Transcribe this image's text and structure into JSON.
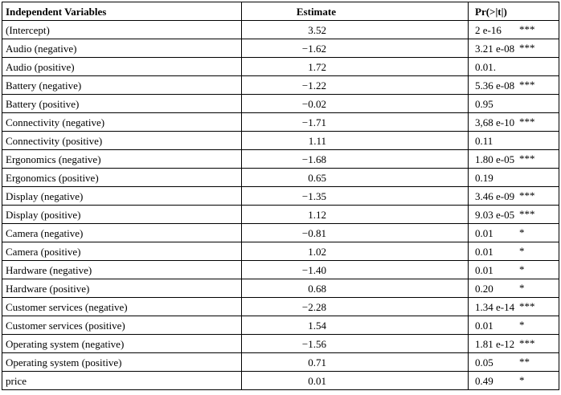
{
  "table": {
    "headers": {
      "variable": "Independent Variables",
      "estimate": "Estimate",
      "p_value": "Pr(>|t|)"
    },
    "rows": [
      {
        "variable": "(Intercept)",
        "estimate": "3.52",
        "p": "2 e-16",
        "sig": "***"
      },
      {
        "variable": "Audio (negative)",
        "estimate": "−1.62",
        "p": "3.21 e-08",
        "sig": "***"
      },
      {
        "variable": "Audio (positive)",
        "estimate": "1.72",
        "p": "0.01.",
        "sig": ""
      },
      {
        "variable": "Battery (negative)",
        "estimate": "−1.22",
        "p": "5.36 e-08",
        "sig": "***"
      },
      {
        "variable": "Battery (positive)",
        "estimate": "−0.02",
        "p": "0.95",
        "sig": ""
      },
      {
        "variable": "Connectivity (negative)",
        "estimate": "−1.71",
        "p": "3,68 e-10",
        "sig": "***"
      },
      {
        "variable": "Connectivity (positive)",
        "estimate": "1.11",
        "p": "0.11",
        "sig": ""
      },
      {
        "variable": "Ergonomics (negative)",
        "estimate": "−1.68",
        "p": "1.80 e-05",
        "sig": "***"
      },
      {
        "variable": "Ergonomics (positive)",
        "estimate": "0.65",
        "p": "0.19",
        "sig": ""
      },
      {
        "variable": "Display (negative)",
        "estimate": "−1.35",
        "p": "3.46 e-09",
        "sig": "***"
      },
      {
        "variable": "Display (positive)",
        "estimate": "1.12",
        "p": "9.03 e-05",
        "sig": "***"
      },
      {
        "variable": "Camera (negative)",
        "estimate": "−0.81",
        "p": "0.01",
        "sig": "*"
      },
      {
        "variable": "Camera (positive)",
        "estimate": "1.02",
        "p": "0.01",
        "sig": "*"
      },
      {
        "variable": "Hardware (negative)",
        "estimate": "−1.40",
        "p": "0.01",
        "sig": "*"
      },
      {
        "variable": "Hardware (positive)",
        "estimate": "0.68",
        "p": "0.20",
        "sig": "*"
      },
      {
        "variable": "Customer services (negative)",
        "estimate": "−2.28",
        "p": "1.34 e-14",
        "sig": "***"
      },
      {
        "variable": "Customer services (positive)",
        "estimate": "1.54",
        "p": "0.01",
        "sig": "*"
      },
      {
        "variable": "Operating system (negative)",
        "estimate": "−1.56",
        "p": "1.81 e-12",
        "sig": "***"
      },
      {
        "variable": "Operating system (positive)",
        "estimate": "0.71",
        "p": "0.05",
        "sig": "**"
      },
      {
        "variable": "price",
        "estimate": "0.01",
        "p": "0.49",
        "sig": "*"
      }
    ]
  }
}
